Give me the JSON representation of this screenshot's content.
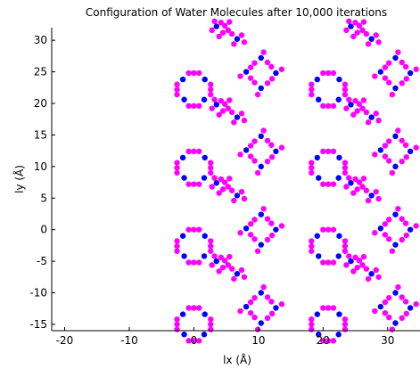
{
  "chart_data": {
    "type": "scatter",
    "title": "Configuration of Water Molecules after 10,000 iterations",
    "xlabel": "lx (Å)",
    "ylabel": "ly (Å)",
    "xlim": [
      -22,
      35
    ],
    "ylim": [
      -16,
      32
    ],
    "x_ticks": [
      -20,
      -10,
      0,
      10,
      20,
      30
    ],
    "y_ticks": [
      -15,
      -10,
      -5,
      0,
      5,
      10,
      15,
      20,
      25,
      30
    ],
    "x_tick_labels": [
      "-20",
      "-10",
      "0",
      "10",
      "20",
      "30"
    ],
    "y_tick_labels": [
      "-15",
      "-10",
      "-5",
      "0",
      "5",
      "10",
      "15",
      "20",
      "25",
      "30"
    ],
    "grid": false,
    "legend": "none",
    "colors": {
      "hydrogen": "#ff00ff",
      "oxygen": "#0000ff"
    },
    "lattice": {
      "a": [
        0,
        -15
      ],
      "b": [
        10.4,
        -12.4
      ],
      "c": [
        5.2,
        -6.2
      ],
      "shift_a": [
        20.8,
        0
      ],
      "shift_c": [
        0,
        12.4
      ],
      "cols_a": 3,
      "rows_a": 4,
      "cols_b": 2,
      "rows_b": 4,
      "cols_c": 3,
      "rows_c": 4
    },
    "cluster_a": {
      "oxygen": [
        [
          -1.5,
          -1.6
        ],
        [
          1.6,
          -1.6
        ],
        [
          -1.7,
          1.6
        ],
        [
          1.7,
          1.6
        ]
      ],
      "hydrogen": [
        [
          -0.8,
          -2.6
        ],
        [
          0.0,
          -2.6
        ],
        [
          0.8,
          -2.6
        ],
        [
          -2.6,
          -0.8
        ],
        [
          -2.6,
          0.0
        ],
        [
          -2.6,
          0.8
        ],
        [
          2.6,
          -0.8
        ],
        [
          2.6,
          0.0
        ],
        [
          2.6,
          0.8
        ],
        [
          -0.8,
          2.6
        ],
        [
          0.0,
          2.6
        ],
        [
          0.8,
          2.6
        ]
      ]
    },
    "cluster_b": {
      "oxygen": [
        [
          0.0,
          -2.4
        ],
        [
          2.3,
          0.0
        ],
        [
          -2.3,
          0.2
        ],
        [
          0.0,
          2.4
        ]
      ],
      "hydrogen": [
        [
          -1.0,
          -1.5
        ],
        [
          -1.6,
          -0.8
        ],
        [
          1.0,
          -1.6
        ],
        [
          1.7,
          -0.9
        ],
        [
          -1.6,
          0.9
        ],
        [
          -1.0,
          1.6
        ],
        [
          1.6,
          1.0
        ],
        [
          1.0,
          1.7
        ],
        [
          -0.5,
          -3.4
        ],
        [
          3.2,
          0.6
        ],
        [
          -3.2,
          -0.5
        ],
        [
          0.4,
          3.3
        ]
      ]
    },
    "cluster_c": {
      "oxygen": [
        [
          -1.7,
          1.2
        ],
        [
          1.5,
          -0.8
        ]
      ],
      "hydrogen": [
        [
          -1.0,
          1.8
        ],
        [
          -0.4,
          1.3
        ],
        [
          0.1,
          0.6
        ],
        [
          0.7,
          0.0
        ],
        [
          -2.4,
          0.6
        ],
        [
          2.2,
          -0.2
        ],
        [
          2.6,
          -1.3
        ],
        [
          1.0,
          -1.6
        ],
        [
          -0.7,
          0.2
        ],
        [
          -1.3,
          -0.4
        ],
        [
          0.3,
          1.9
        ],
        [
          -2.0,
          2.0
        ]
      ]
    }
  }
}
